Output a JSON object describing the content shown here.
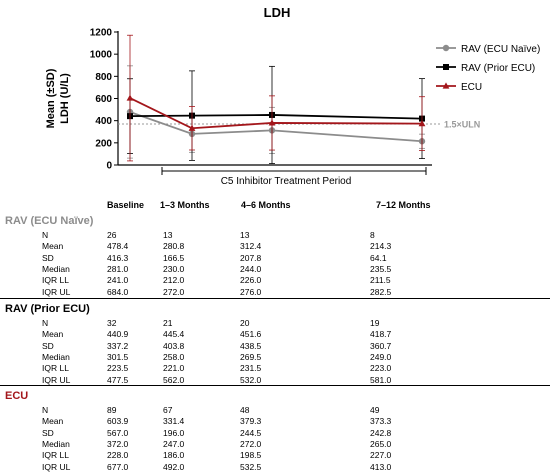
{
  "chart_data": {
    "type": "line",
    "title": "LDH",
    "ylabel_line1": "Mean (±SD)",
    "ylabel_line2": "LDH (U/L)",
    "xlabel": "C5 Inhibitor Treatment Period",
    "categories": [
      "Baseline",
      "1–3 Months",
      "4–6 Months",
      "7–12 Months"
    ],
    "ylim": [
      0,
      1200
    ],
    "yticks": [
      "0",
      "200",
      "400",
      "600",
      "800",
      "1000",
      "1200"
    ],
    "reference_line": {
      "value": 370,
      "label": "1.5×ULN"
    },
    "legend_position": "top-right",
    "series": [
      {
        "name": "RAV (ECU Naïve)",
        "color": "#8c8c8c",
        "marker": "circle",
        "values": [
          478.4,
          280.8,
          312.4,
          214.3
        ],
        "sd": [
          416.3,
          166.5,
          207.8,
          64.1
        ]
      },
      {
        "name": "RAV (Prior ECU)",
        "color": "#000000",
        "marker": "square",
        "values": [
          440.9,
          445.4,
          451.6,
          418.7
        ],
        "sd": [
          337.2,
          403.8,
          438.5,
          360.7
        ]
      },
      {
        "name": "ECU",
        "color": "#a3161b",
        "marker": "triangle",
        "values": [
          603.9,
          331.4,
          379.3,
          373.3
        ],
        "sd": [
          567.0,
          196.0,
          244.5,
          242.8
        ]
      }
    ]
  },
  "table": {
    "columns": [
      "Baseline",
      "1–3 Months",
      "4–6 Months",
      "7–12 Months"
    ],
    "groups": [
      {
        "title": "RAV (ECU Naïve)",
        "color": "#8c8c8c",
        "rows": [
          {
            "label": "N",
            "values": [
              "26",
              "13",
              "13",
              "8"
            ]
          },
          {
            "label": "Mean",
            "values": [
              "478.4",
              "280.8",
              "312.4",
              "214.3"
            ]
          },
          {
            "label": "SD",
            "values": [
              "416.3",
              "166.5",
              "207.8",
              "64.1"
            ]
          },
          {
            "label": "Median",
            "values": [
              "281.0",
              "230.0",
              "244.0",
              "235.5"
            ]
          },
          {
            "label": "IQR LL",
            "values": [
              "241.0",
              "212.0",
              "226.0",
              "211.5"
            ]
          },
          {
            "label": "IQR UL",
            "values": [
              "684.0",
              "272.0",
              "276.0",
              "282.5"
            ]
          }
        ]
      },
      {
        "title": "RAV (Prior ECU)",
        "color": "#000000",
        "rows": [
          {
            "label": "N",
            "values": [
              "32",
              "21",
              "20",
              "19"
            ]
          },
          {
            "label": "Mean",
            "values": [
              "440.9",
              "445.4",
              "451.6",
              "418.7"
            ]
          },
          {
            "label": "SD",
            "values": [
              "337.2",
              "403.8",
              "438.5",
              "360.7"
            ]
          },
          {
            "label": "Median",
            "values": [
              "301.5",
              "258.0",
              "269.5",
              "249.0"
            ]
          },
          {
            "label": "IQR LL",
            "values": [
              "223.5",
              "221.0",
              "231.5",
              "223.0"
            ]
          },
          {
            "label": "IQR UL",
            "values": [
              "477.5",
              "562.0",
              "532.0",
              "581.0"
            ]
          }
        ]
      },
      {
        "title": "ECU",
        "color": "#a3161b",
        "rows": [
          {
            "label": "N",
            "values": [
              "89",
              "67",
              "48",
              "49"
            ]
          },
          {
            "label": "Mean",
            "values": [
              "603.9",
              "331.4",
              "379.3",
              "373.3"
            ]
          },
          {
            "label": "SD",
            "values": [
              "567.0",
              "196.0",
              "244.5",
              "242.8"
            ]
          },
          {
            "label": "Median",
            "values": [
              "372.0",
              "247.0",
              "272.0",
              "265.0"
            ]
          },
          {
            "label": "IQR LL",
            "values": [
              "228.0",
              "186.0",
              "198.5",
              "227.0"
            ]
          },
          {
            "label": "IQR UL",
            "values": [
              "677.0",
              "492.0",
              "532.5",
              "413.0"
            ]
          }
        ]
      }
    ]
  }
}
